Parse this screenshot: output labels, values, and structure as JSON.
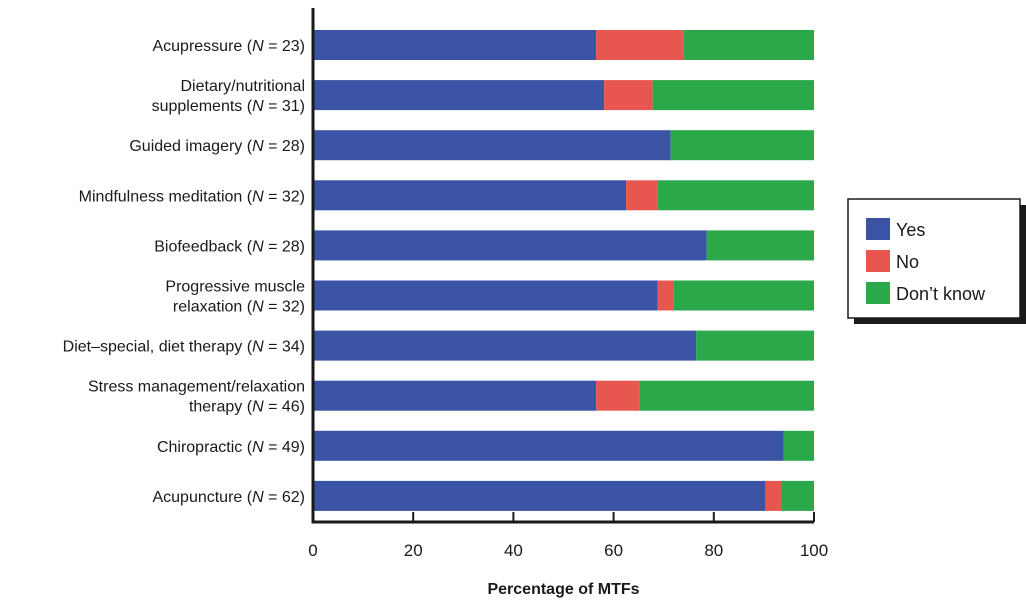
{
  "chart_data": {
    "type": "bar",
    "orientation": "horizontal",
    "stacked": true,
    "title": "",
    "xlabel": "Percentage of MTFs",
    "ylabel": "",
    "xlim": [
      0,
      100
    ],
    "xticks": [
      0,
      20,
      40,
      60,
      80,
      100
    ],
    "grid": false,
    "legend_position": "right",
    "categories": [
      [
        "Acupressure (",
        "N",
        " = 23)"
      ],
      [
        "Dietary/nutritional",
        "supplements (",
        "N",
        " = 31)"
      ],
      [
        "Guided imagery (",
        "N",
        " = 28)"
      ],
      [
        "Mindfulness meditation (",
        "N",
        " = 32)"
      ],
      [
        "Biofeedback (",
        "N",
        " = 28)"
      ],
      [
        "Progressive muscle",
        "relaxation (",
        "N",
        " = 32)"
      ],
      [
        "Diet–special, diet therapy (",
        "N",
        " = 34)"
      ],
      [
        "Stress management/relaxation",
        "therapy (",
        "N",
        " = 46)"
      ],
      [
        "Chiropractic (",
        "N",
        " = 49)"
      ],
      [
        "Acupuncture (",
        "N",
        " = 62)"
      ]
    ],
    "series": [
      {
        "name": "Yes",
        "color": "#3a53a4",
        "values": [
          56.5,
          58.1,
          71.4,
          62.5,
          78.6,
          68.8,
          76.5,
          56.5,
          93.9,
          90.3
        ]
      },
      {
        "name": "No",
        "color": "#e8574f",
        "values": [
          17.4,
          9.7,
          0,
          6.3,
          0,
          3.1,
          0,
          8.7,
          0,
          3.2
        ]
      },
      {
        "name": "Don’t know",
        "color": "#2aa84a",
        "values": [
          26.1,
          32.2,
          28.6,
          31.2,
          21.4,
          28.1,
          23.5,
          34.8,
          6.1,
          6.5
        ]
      }
    ]
  }
}
